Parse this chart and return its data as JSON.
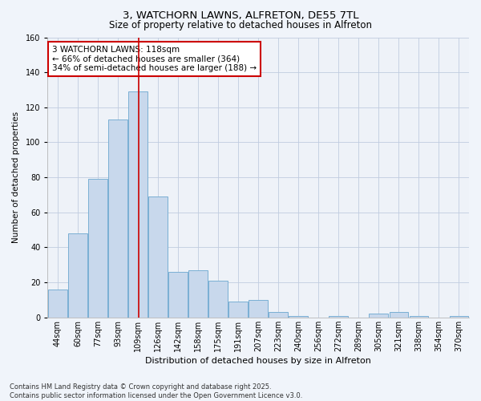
{
  "title": "3, WATCHORN LAWNS, ALFRETON, DE55 7TL",
  "subtitle": "Size of property relative to detached houses in Alfreton",
  "xlabel": "Distribution of detached houses by size in Alfreton",
  "ylabel": "Number of detached properties",
  "bar_color": "#c8d8ec",
  "bar_edge_color": "#7aafd4",
  "background_color": "#f0f4fa",
  "plot_bg_color": "#eef2f8",
  "grid_color": "#c0cce0",
  "annotation_box_color": "#cc0000",
  "annotation_text": "3 WATCHORN LAWNS: 118sqm\n← 66% of detached houses are smaller (364)\n34% of semi-detached houses are larger (188) →",
  "vline_color": "#cc0000",
  "vline_bar_index": 4,
  "categories": [
    "44sqm",
    "60sqm",
    "77sqm",
    "93sqm",
    "109sqm",
    "126sqm",
    "142sqm",
    "158sqm",
    "175sqm",
    "191sqm",
    "207sqm",
    "223sqm",
    "240sqm",
    "256sqm",
    "272sqm",
    "289sqm",
    "305sqm",
    "321sqm",
    "338sqm",
    "354sqm",
    "370sqm"
  ],
  "values": [
    16,
    48,
    79,
    113,
    129,
    69,
    26,
    27,
    21,
    9,
    10,
    3,
    1,
    0,
    1,
    0,
    2,
    3,
    1,
    0,
    1
  ],
  "ylim": [
    0,
    160
  ],
  "yticks": [
    0,
    20,
    40,
    60,
    80,
    100,
    120,
    140,
    160
  ],
  "footnote": "Contains HM Land Registry data © Crown copyright and database right 2025.\nContains public sector information licensed under the Open Government Licence v3.0.",
  "title_fontsize": 9.5,
  "subtitle_fontsize": 8.5,
  "xlabel_fontsize": 8,
  "ylabel_fontsize": 7.5,
  "tick_fontsize": 7,
  "footnote_fontsize": 6,
  "annotation_fontsize": 7.5
}
